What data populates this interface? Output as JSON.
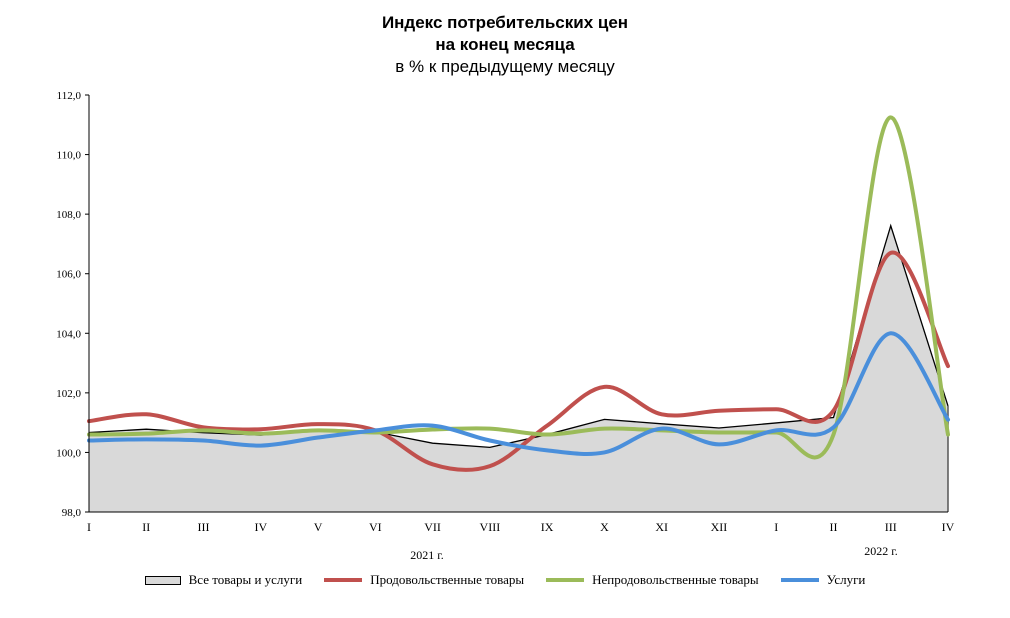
{
  "chart_data": {
    "type": "line",
    "title": "Индекс потребительских цен",
    "title2": "на конец месяца",
    "subtitle": "в % к предыдущему месяцу",
    "categories": [
      "I",
      "II",
      "III",
      "IV",
      "V",
      "VI",
      "VII",
      "VIII",
      "IX",
      "X",
      "XI",
      "XII",
      "I",
      "II",
      "III",
      "IV"
    ],
    "year_labels": [
      "2021 г.",
      "2022 г."
    ],
    "ylim": [
      98,
      112
    ],
    "yticks": [
      "98,0",
      "100,0",
      "102,0",
      "104,0",
      "106,0",
      "108,0",
      "110,0",
      "112,0"
    ],
    "grid": false,
    "legend_position": "bottom",
    "series": [
      {
        "name": "Все товары и услуги",
        "style": "area",
        "color": "#000000",
        "fill": "#d9d9d9",
        "values": [
          100.67,
          100.78,
          100.66,
          100.58,
          100.74,
          100.69,
          100.31,
          100.17,
          100.6,
          101.11,
          100.96,
          100.82,
          100.99,
          101.17,
          107.61,
          101.56
        ]
      },
      {
        "name": "Продовольственные товары",
        "style": "smooth",
        "color": "#c0504d",
        "values": [
          101.05,
          101.28,
          100.84,
          100.78,
          100.95,
          100.74,
          99.6,
          99.54,
          100.9,
          102.2,
          101.28,
          101.4,
          101.45,
          101.4,
          106.7,
          102.9
        ]
      },
      {
        "name": "Непродовольственные товары",
        "style": "smooth",
        "color": "#9bbb59",
        "values": [
          100.6,
          100.63,
          100.74,
          100.63,
          100.74,
          100.67,
          100.77,
          100.8,
          100.6,
          100.8,
          100.74,
          100.67,
          100.67,
          100.6,
          111.25,
          100.6
        ]
      },
      {
        "name": "Услуги",
        "style": "smooth",
        "color": "#4a8fdb",
        "values": [
          100.4,
          100.44,
          100.4,
          100.23,
          100.5,
          100.74,
          100.9,
          100.4,
          100.07,
          100.0,
          100.8,
          100.27,
          100.74,
          100.84,
          104.0,
          101.1
        ]
      }
    ]
  }
}
